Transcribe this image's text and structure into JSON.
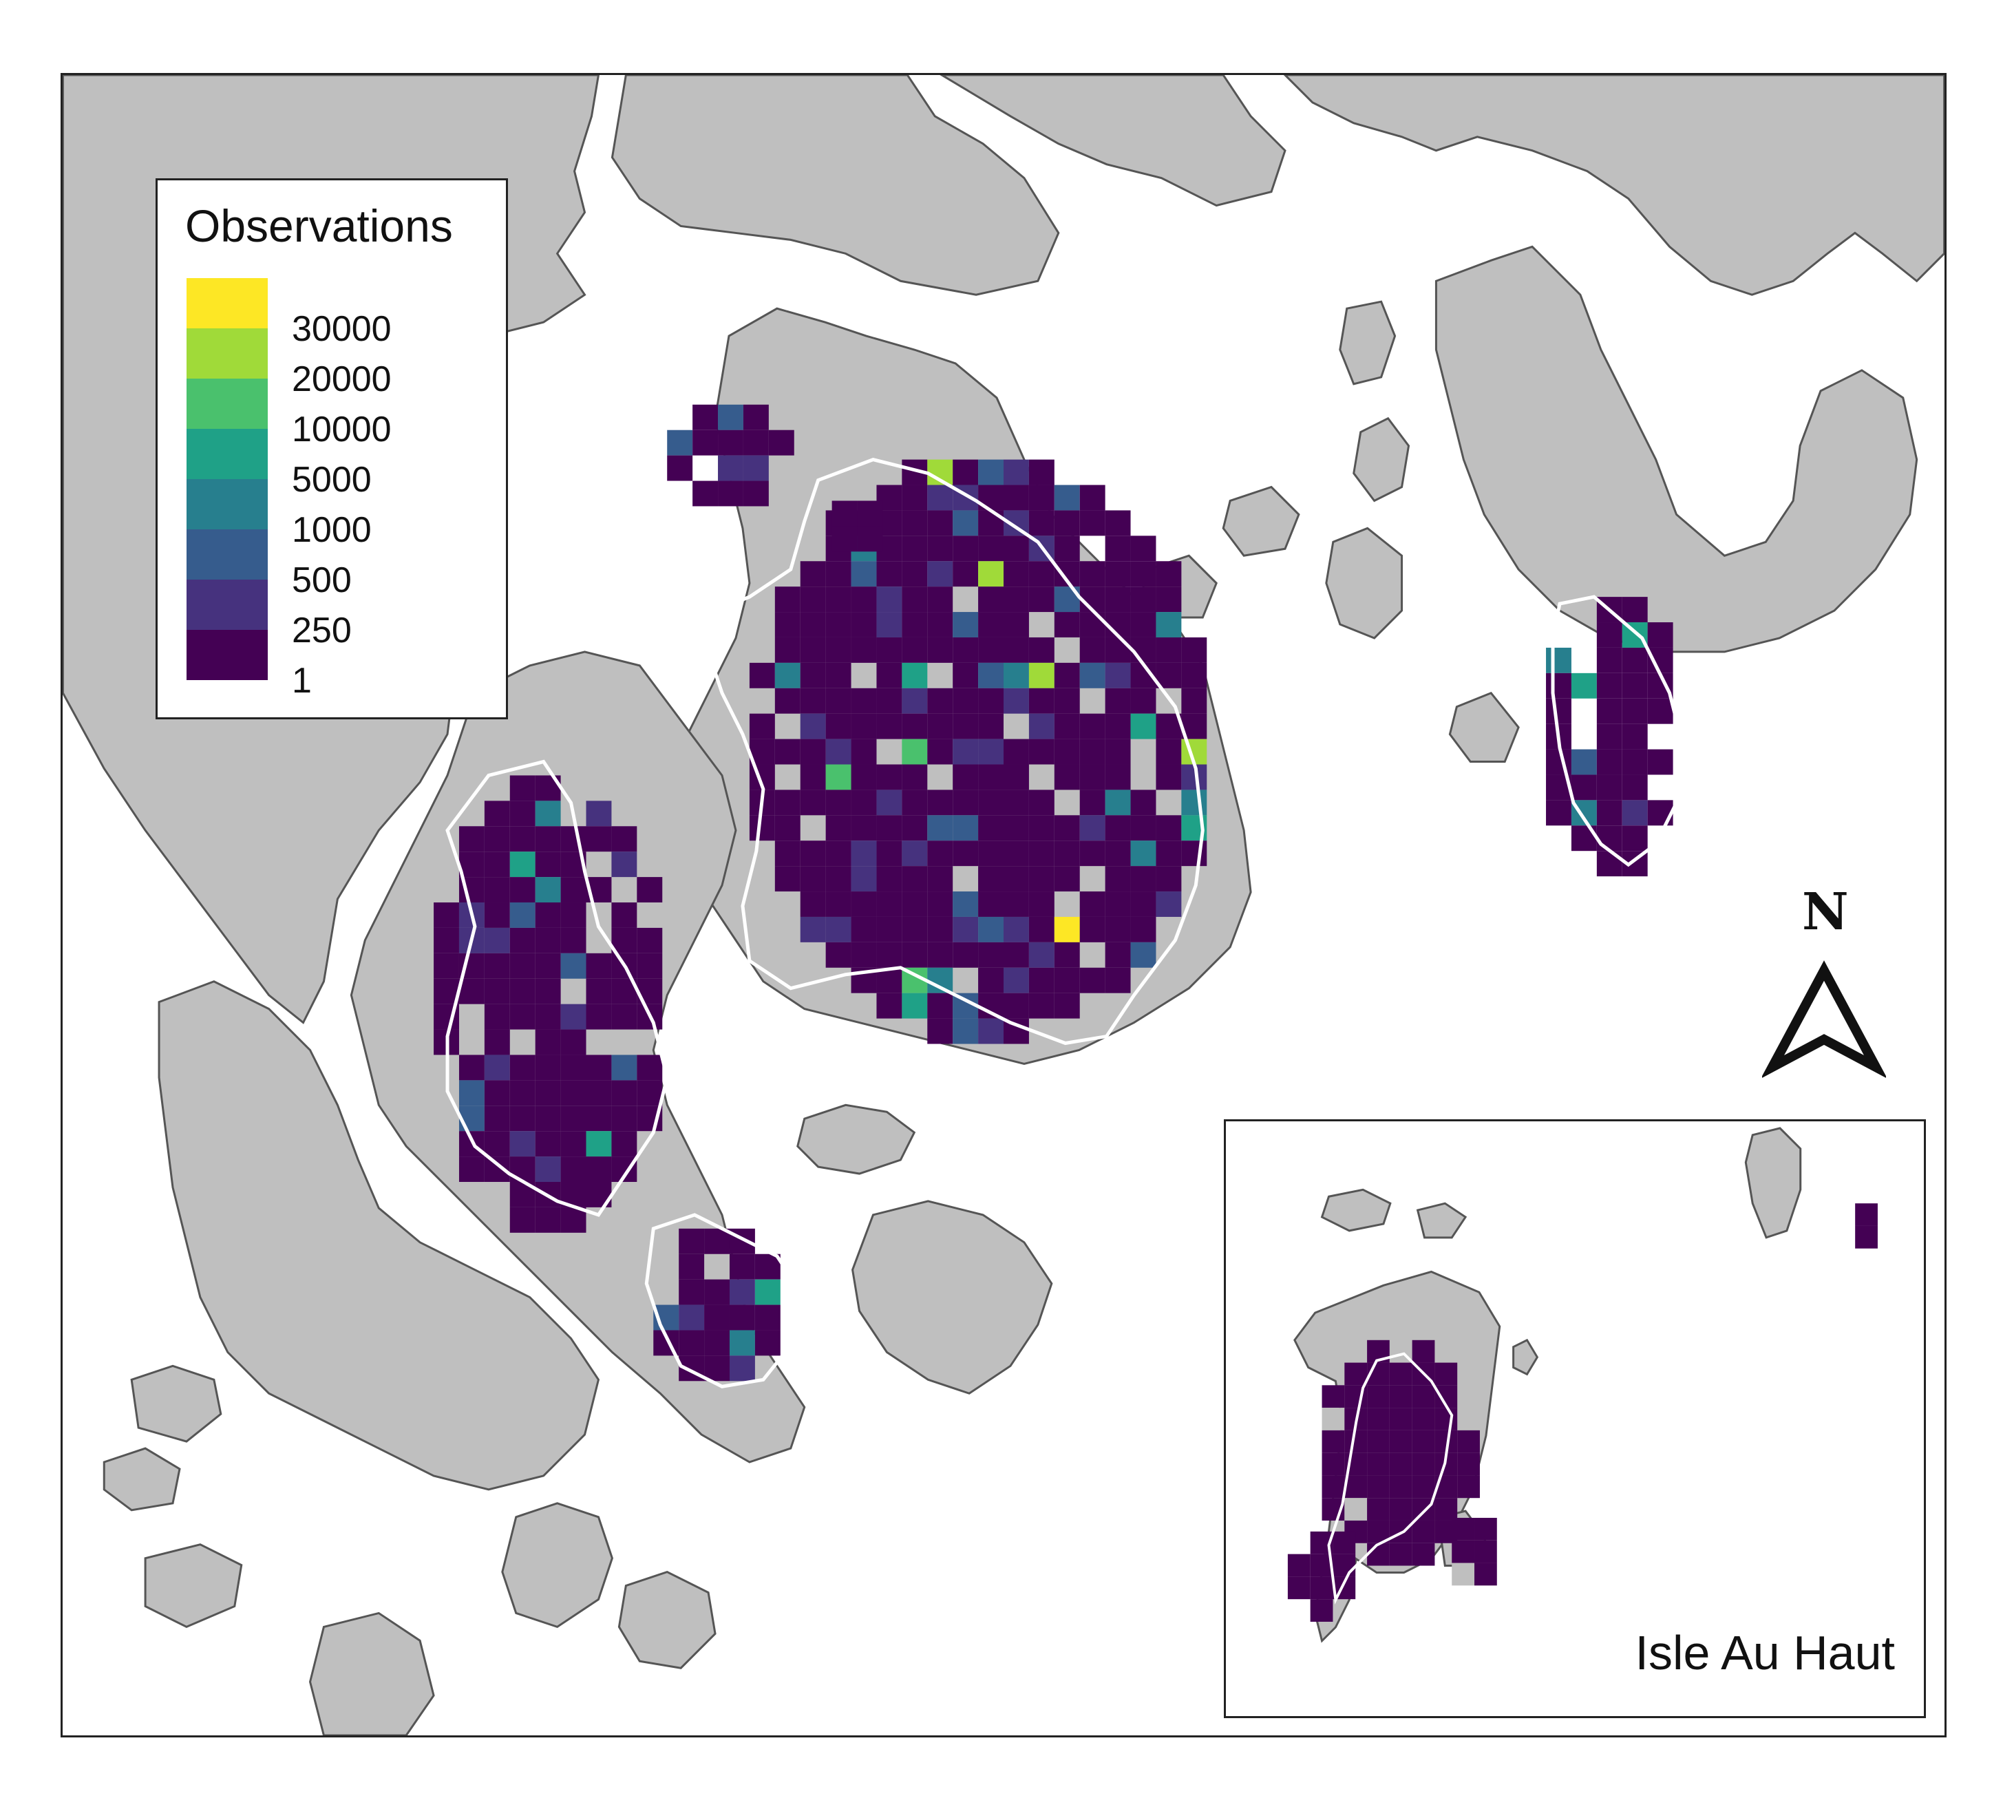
{
  "legend": {
    "title": "Observations",
    "labels": [
      "30000",
      "20000",
      "10000",
      "5000",
      "1000",
      "500",
      "250",
      "1"
    ],
    "colors": [
      "#fde725",
      "#a0da39",
      "#4ac16d",
      "#1fa187",
      "#277f8e",
      "#365c8d",
      "#46327e",
      "#440154"
    ]
  },
  "north_arrow": {
    "label": "N"
  },
  "inset": {
    "label": "Isle Au Haut"
  },
  "map_colors": {
    "land": "#bfbfbf",
    "coast": "#555555",
    "water": "#ffffff",
    "park_boundary": "#ffffff"
  }
}
